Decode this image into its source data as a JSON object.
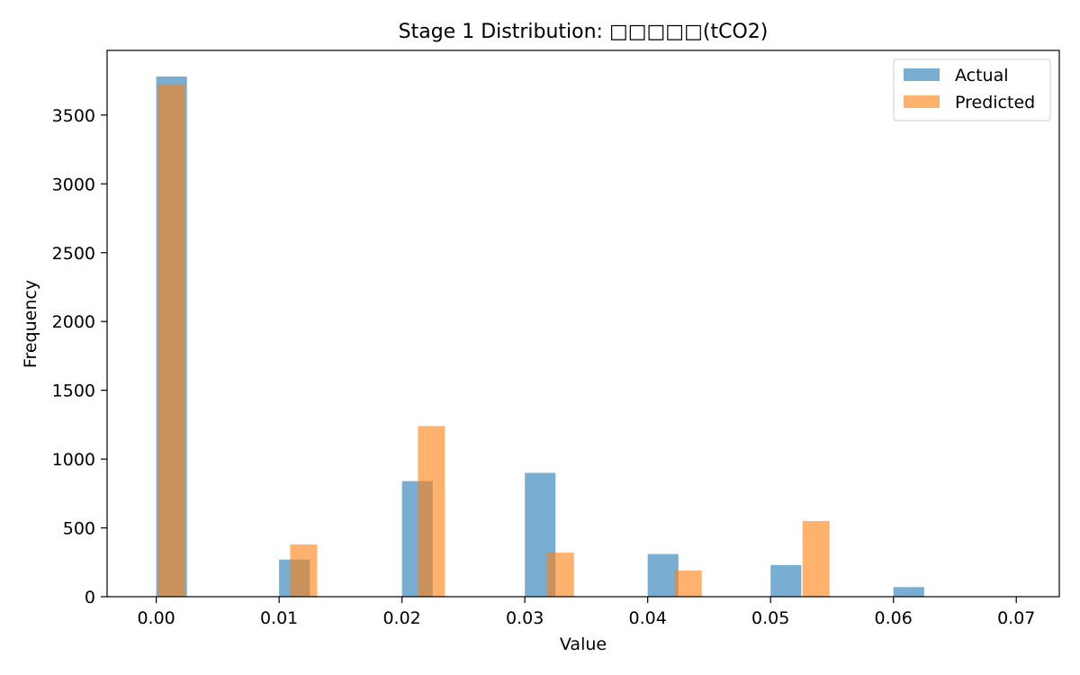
{
  "chart_data": {
    "type": "bar",
    "title": "Stage 1 Distribution: □□□□□(tCO2)",
    "xlabel": "Value",
    "ylabel": "Frequency",
    "xlim": [
      -0.004,
      0.0735
    ],
    "ylim": [
      0,
      3970
    ],
    "xticks": [
      "0.00",
      "0.01",
      "0.02",
      "0.03",
      "0.04",
      "0.05",
      "0.06",
      "0.07"
    ],
    "xtick_values": [
      0.0,
      0.01,
      0.02,
      0.03,
      0.04,
      0.05,
      0.06,
      0.07
    ],
    "yticks": [
      "0",
      "500",
      "1000",
      "1500",
      "2000",
      "2500",
      "3000",
      "3500"
    ],
    "ytick_values": [
      0,
      500,
      1000,
      1500,
      2000,
      2500,
      3000,
      3500
    ],
    "grid": false,
    "legend_position": "top-right",
    "series": [
      {
        "name": "Actual",
        "color": "#1f77b4",
        "opacity": 0.6,
        "bin_width": 0.0025,
        "bins": [
          {
            "x": 0.0,
            "value": 3780
          },
          {
            "x": 0.01,
            "value": 270
          },
          {
            "x": 0.02,
            "value": 840
          },
          {
            "x": 0.03,
            "value": 900
          },
          {
            "x": 0.04,
            "value": 310
          },
          {
            "x": 0.05,
            "value": 230
          },
          {
            "x": 0.06,
            "value": 70
          }
        ]
      },
      {
        "name": "Predicted",
        "color": "#ff7f0e",
        "opacity": 0.6,
        "bin_width": 0.0022,
        "bins": [
          {
            "x": 0.0001,
            "value": 3720
          },
          {
            "x": 0.0109,
            "value": 380
          },
          {
            "x": 0.0213,
            "value": 1240
          },
          {
            "x": 0.0318,
            "value": 320
          },
          {
            "x": 0.0422,
            "value": 190
          },
          {
            "x": 0.0526,
            "value": 550
          }
        ]
      }
    ]
  }
}
